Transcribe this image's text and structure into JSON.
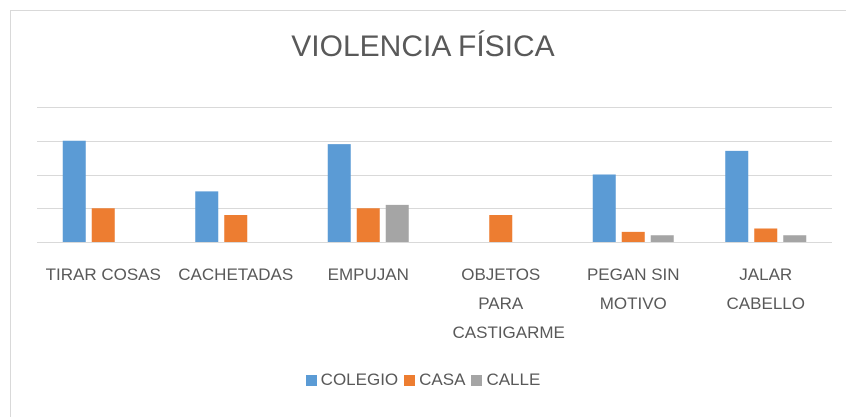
{
  "chart_data": {
    "type": "bar",
    "title": "VIOLENCIA FÍSICA",
    "categories": [
      "TIRAR COSAS",
      "CACHETADAS",
      "EMPUJAN",
      "OBJETOS PARA CASTIGARME",
      "PEGAN SIN MOTIVO",
      "JALAR CABELLO"
    ],
    "series": [
      {
        "name": "COLEGIO",
        "color": "#5b9bd5",
        "values": [
          3.0,
          1.5,
          2.9,
          0,
          2.0,
          2.7
        ]
      },
      {
        "name": "CASA",
        "color": "#ed7d31",
        "values": [
          1.0,
          0.8,
          1.0,
          0.8,
          0.3,
          0.4
        ]
      },
      {
        "name": "CALLE",
        "color": "#a5a5a5",
        "values": [
          0,
          0,
          1.1,
          0,
          0.2,
          0.2
        ]
      }
    ],
    "ylim": [
      0,
      4
    ],
    "yticks": [
      0,
      1,
      2,
      3,
      4
    ],
    "grid": true,
    "legend": "bottom"
  }
}
